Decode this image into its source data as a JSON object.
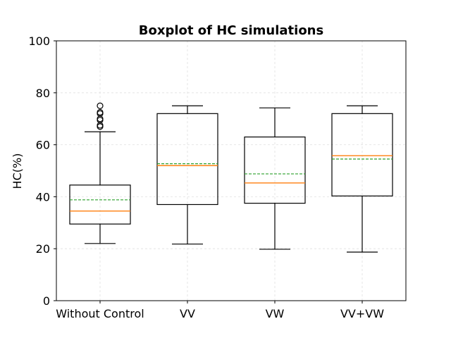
{
  "chart_data": {
    "type": "boxplot",
    "title": "Boxplot of HC simulations",
    "xlabel": "",
    "ylabel": "HC(%)",
    "ylim": [
      0,
      100
    ],
    "yticks": [
      0,
      20,
      40,
      60,
      80,
      100
    ],
    "grid": true,
    "categories": [
      "Without Control",
      "VV",
      "VW",
      "VV+VW"
    ],
    "boxes": [
      {
        "category": "Without Control",
        "whisker_low": 22,
        "q1": 29.5,
        "median": 34.5,
        "mean": 38.8,
        "q3": 44.5,
        "whisker_high": 65,
        "outliers": [
          67,
          67.5,
          69.5,
          70,
          72,
          72.5,
          75
        ]
      },
      {
        "category": "VV",
        "whisker_low": 21.8,
        "q1": 37,
        "median": 52,
        "mean": 52.7,
        "q3": 72,
        "whisker_high": 75,
        "outliers": []
      },
      {
        "category": "VW",
        "whisker_low": 19.8,
        "q1": 37.5,
        "median": 45.3,
        "mean": 48.8,
        "q3": 63,
        "whisker_high": 74.2,
        "outliers": []
      },
      {
        "category": "VV+VW",
        "whisker_low": 18.7,
        "q1": 40.3,
        "median": 55.8,
        "mean": 54.5,
        "q3": 72,
        "whisker_high": 75,
        "outliers": []
      }
    ],
    "colors": {
      "box": "#000000",
      "median": "#ff7f0e",
      "mean": "#2ca02c",
      "grid": "#e0e0e0"
    }
  }
}
